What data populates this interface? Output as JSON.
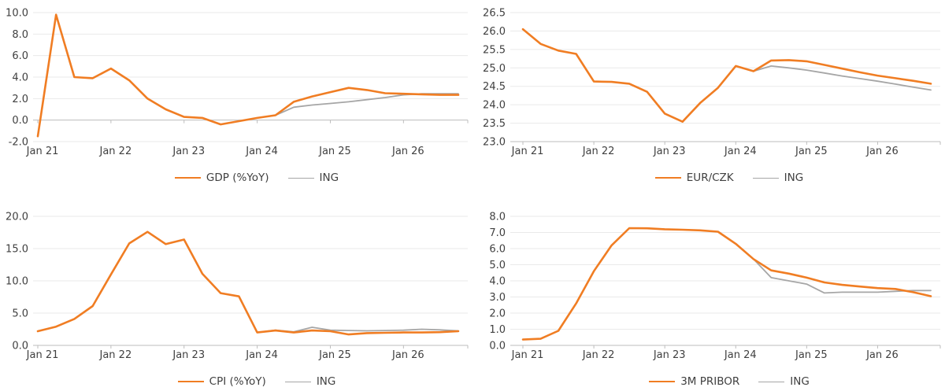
{
  "colors": {
    "series_orange": "#F07D23",
    "series_gray": "#A6A6A6",
    "gridline": "#EAEAEA",
    "axis_line": "#BDBDBD",
    "label_text": "#404040"
  },
  "x_labels": [
    "Jan 21",
    "Jan 22",
    "Jan 23",
    "Jan 24",
    "Jan 25",
    "Jan 26"
  ],
  "chart_data": [
    {
      "type": "line",
      "title": "",
      "xlabel": "",
      "ylabel": "",
      "x_labels": [
        "Jan 21",
        "Jan 22",
        "Jan 23",
        "Jan 24",
        "Jan 25",
        "Jan 26"
      ],
      "x_count": 24,
      "ylim": [
        -2.0,
        10.0
      ],
      "y_step": 2.0,
      "axis_cross_at": 0.0,
      "grid": true,
      "legend_position": "bottom",
      "series": [
        {
          "name": "GDP (%YoY)",
          "color_key": "series_orange",
          "start_index": 0,
          "values": [
            -1.5,
            9.8,
            4.0,
            3.9,
            4.8,
            3.7,
            2.0,
            1.0,
            0.3,
            0.2,
            -0.4,
            -0.1,
            0.2,
            0.45,
            1.7,
            2.2,
            2.6,
            3.0,
            2.8,
            2.5,
            2.45,
            2.4,
            2.35,
            2.35
          ]
        },
        {
          "name": "ING",
          "color_key": "series_gray",
          "start_index": 13,
          "values": [
            0.45,
            1.2,
            1.4,
            1.55,
            1.7,
            1.9,
            2.1,
            2.35,
            2.45,
            2.45,
            2.45
          ]
        }
      ]
    },
    {
      "type": "line",
      "title": "",
      "xlabel": "",
      "ylabel": "",
      "x_labels": [
        "Jan 21",
        "Jan 22",
        "Jan 23",
        "Jan 24",
        "Jan 25",
        "Jan 26"
      ],
      "x_count": 24,
      "ylim": [
        23.0,
        26.5
      ],
      "y_step": 0.5,
      "axis_cross_at": 23.0,
      "grid": true,
      "legend_position": "bottom",
      "series": [
        {
          "name": "EUR/CZK",
          "color_key": "series_orange",
          "start_index": 0,
          "values": [
            26.05,
            25.65,
            25.47,
            25.38,
            24.63,
            24.62,
            24.57,
            24.35,
            23.76,
            23.54,
            24.05,
            24.46,
            25.05,
            24.91,
            25.2,
            25.21,
            25.18,
            25.08,
            24.98,
            24.88,
            24.79,
            24.72,
            24.65,
            24.57
          ]
        },
        {
          "name": "ING",
          "color_key": "series_gray",
          "start_index": 13,
          "values": [
            24.91,
            25.05,
            25.0,
            24.94,
            24.86,
            24.78,
            24.71,
            24.64,
            24.56,
            24.48,
            24.4
          ]
        }
      ]
    },
    {
      "type": "line",
      "title": "",
      "xlabel": "",
      "ylabel": "",
      "x_labels": [
        "Jan 21",
        "Jan 22",
        "Jan 23",
        "Jan 24",
        "Jan 25",
        "Jan 26"
      ],
      "x_count": 24,
      "ylim": [
        0.0,
        20.0
      ],
      "y_step": 5.0,
      "axis_cross_at": 0.0,
      "grid": true,
      "legend_position": "bottom",
      "series": [
        {
          "name": "CPI (%YoY)",
          "color_key": "series_orange",
          "start_index": 0,
          "values": [
            2.2,
            2.9,
            4.1,
            6.1,
            11.0,
            15.8,
            17.6,
            15.7,
            16.4,
            11.1,
            8.1,
            7.6,
            2.0,
            2.3,
            2.0,
            2.3,
            2.2,
            1.7,
            1.9,
            1.95,
            2.0,
            2.0,
            2.05,
            2.2
          ]
        },
        {
          "name": "ING",
          "color_key": "series_gray",
          "start_index": 12,
          "values": [
            2.0,
            2.35,
            2.1,
            2.8,
            2.35,
            2.3,
            2.25,
            2.3,
            2.35,
            2.5,
            2.4,
            2.25
          ]
        }
      ]
    },
    {
      "type": "line",
      "title": "",
      "xlabel": "",
      "ylabel": "",
      "x_labels": [
        "Jan 21",
        "Jan 22",
        "Jan 23",
        "Jan 24",
        "Jan 25",
        "Jan 26"
      ],
      "x_count": 24,
      "ylim": [
        0.0,
        8.0
      ],
      "y_step": 1.0,
      "axis_cross_at": 0.0,
      "grid": true,
      "legend_position": "bottom",
      "series": [
        {
          "name": "3M PRIBOR",
          "color_key": "series_orange",
          "start_index": 0,
          "values": [
            0.36,
            0.41,
            0.9,
            2.6,
            4.6,
            6.2,
            7.27,
            7.26,
            7.2,
            7.17,
            7.13,
            7.05,
            6.3,
            5.35,
            4.65,
            4.45,
            4.2,
            3.9,
            3.75,
            3.65,
            3.55,
            3.5,
            3.3,
            3.05
          ]
        },
        {
          "name": "ING",
          "color_key": "series_gray",
          "start_index": 13,
          "values": [
            5.35,
            4.2,
            4.0,
            3.8,
            3.25,
            3.3,
            3.3,
            3.3,
            3.35,
            3.4,
            3.4
          ]
        }
      ]
    }
  ]
}
